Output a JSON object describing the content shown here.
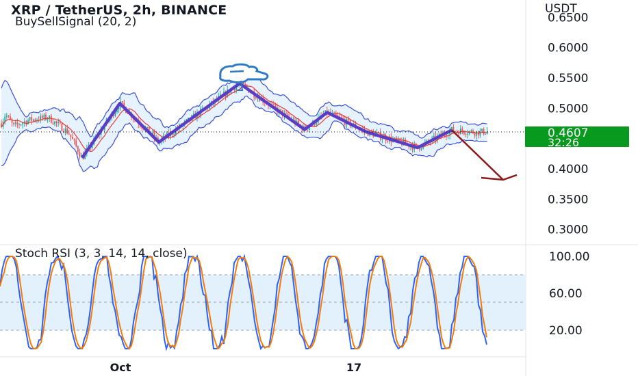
{
  "header": {
    "title": "XRP / TetherUS, 2h, BINANCE",
    "indicator": "BuySellSignal (20, 2)",
    "currency": "USDT"
  },
  "price_badge": {
    "last_price": "0.4607",
    "countdown": "32:26"
  },
  "oscillator": {
    "title": "Stoch RSI (3, 3, 14, 14, close)"
  },
  "x_axis": {
    "labels": [
      "Oct",
      "17"
    ]
  },
  "colors": {
    "candle_up": "#26a69a",
    "candle_down": "#ef5350",
    "band": "#3b4fd6",
    "band_fill": "#dbeeff",
    "basis": "#e53935",
    "zigzag": "#5b3cc4",
    "arrow": "#8b1a1a",
    "stoch_k": "#2962ff",
    "stoch_d": "#f57c00",
    "badge": "#089a1e",
    "grid_dash": "#9aa3b0",
    "text": "#131722"
  },
  "icons": {
    "annotation": "trading-brain-icon"
  },
  "chart_data": [
    {
      "type": "line",
      "title": "XRP / TetherUS, 2h, BINANCE",
      "subtitle": "BuySellSignal (20, 2)",
      "ylabel": "USDT",
      "y_ticks": [
        0.3,
        0.35,
        0.4,
        0.45,
        0.5,
        0.55,
        0.6,
        0.65
      ],
      "y_tick_labels": [
        "0.3000",
        "0.3500",
        "0.4000",
        "0.4500",
        "0.5000",
        "0.5500",
        "0.6000",
        "0.6500"
      ],
      "ylim": [
        0.29,
        0.66
      ],
      "x_ticks": [
        "Oct",
        "17"
      ],
      "last_price": 0.4607,
      "series": [
        {
          "name": "",
          "role": "zigzag",
          "points": [
            [
              120,
              0.418
            ],
            [
              175,
              0.508
            ],
            [
              232,
              0.444
            ],
            [
              350,
              0.541
            ],
            [
              445,
              0.465
            ],
            [
              478,
              0.493
            ],
            [
              535,
              0.461
            ],
            [
              610,
              0.435
            ],
            [
              660,
              0.464
            ]
          ]
        },
        {
          "name": "",
          "role": "projection",
          "points": [
            [
              660,
              0.464
            ],
            [
              735,
              0.382
            ],
            [
              755,
              0.39
            ]
          ]
        }
      ]
    },
    {
      "type": "line",
      "title": "Stoch RSI (3, 3, 14, 14, close)",
      "y_ticks": [
        20,
        40,
        60,
        80,
        100
      ],
      "y_tick_labels": [
        "20.00",
        "",
        "60.00",
        "",
        "100.00"
      ],
      "ylim": [
        0,
        100
      ],
      "bands": [
        20,
        80
      ]
    }
  ]
}
